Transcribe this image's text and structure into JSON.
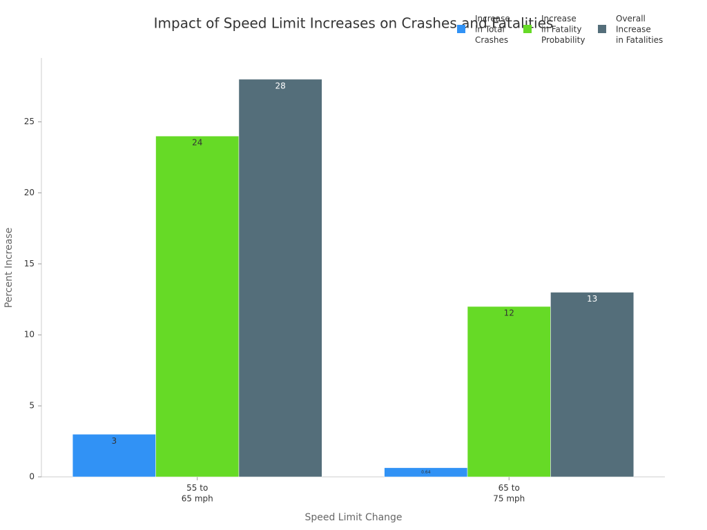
{
  "chart_data": {
    "type": "bar",
    "title": "Impact of Speed Limit Increases on Crashes and Fatalities",
    "x_label": "Speed Limit Change",
    "y_label": "Percent Increase",
    "categories": [
      "55 to\n65 mph",
      "65 to\n75 mph"
    ],
    "series": [
      {
        "name": "Increase\nin Total\nCrashes",
        "color": "#3192f5",
        "values": [
          3,
          0.64
        ]
      },
      {
        "name": "Increase\nin Fatality\nProbability",
        "color": "#66da26",
        "values": [
          24,
          12
        ]
      },
      {
        "name": "Overall\nIncrease\nin Fatalities",
        "color": "#546e7a",
        "values": [
          28,
          13
        ]
      }
    ],
    "ylim": [
      0,
      29.5
    ],
    "yticks": [
      0,
      5,
      10,
      15,
      20,
      25
    ],
    "grid": false,
    "legend": "top-right"
  }
}
